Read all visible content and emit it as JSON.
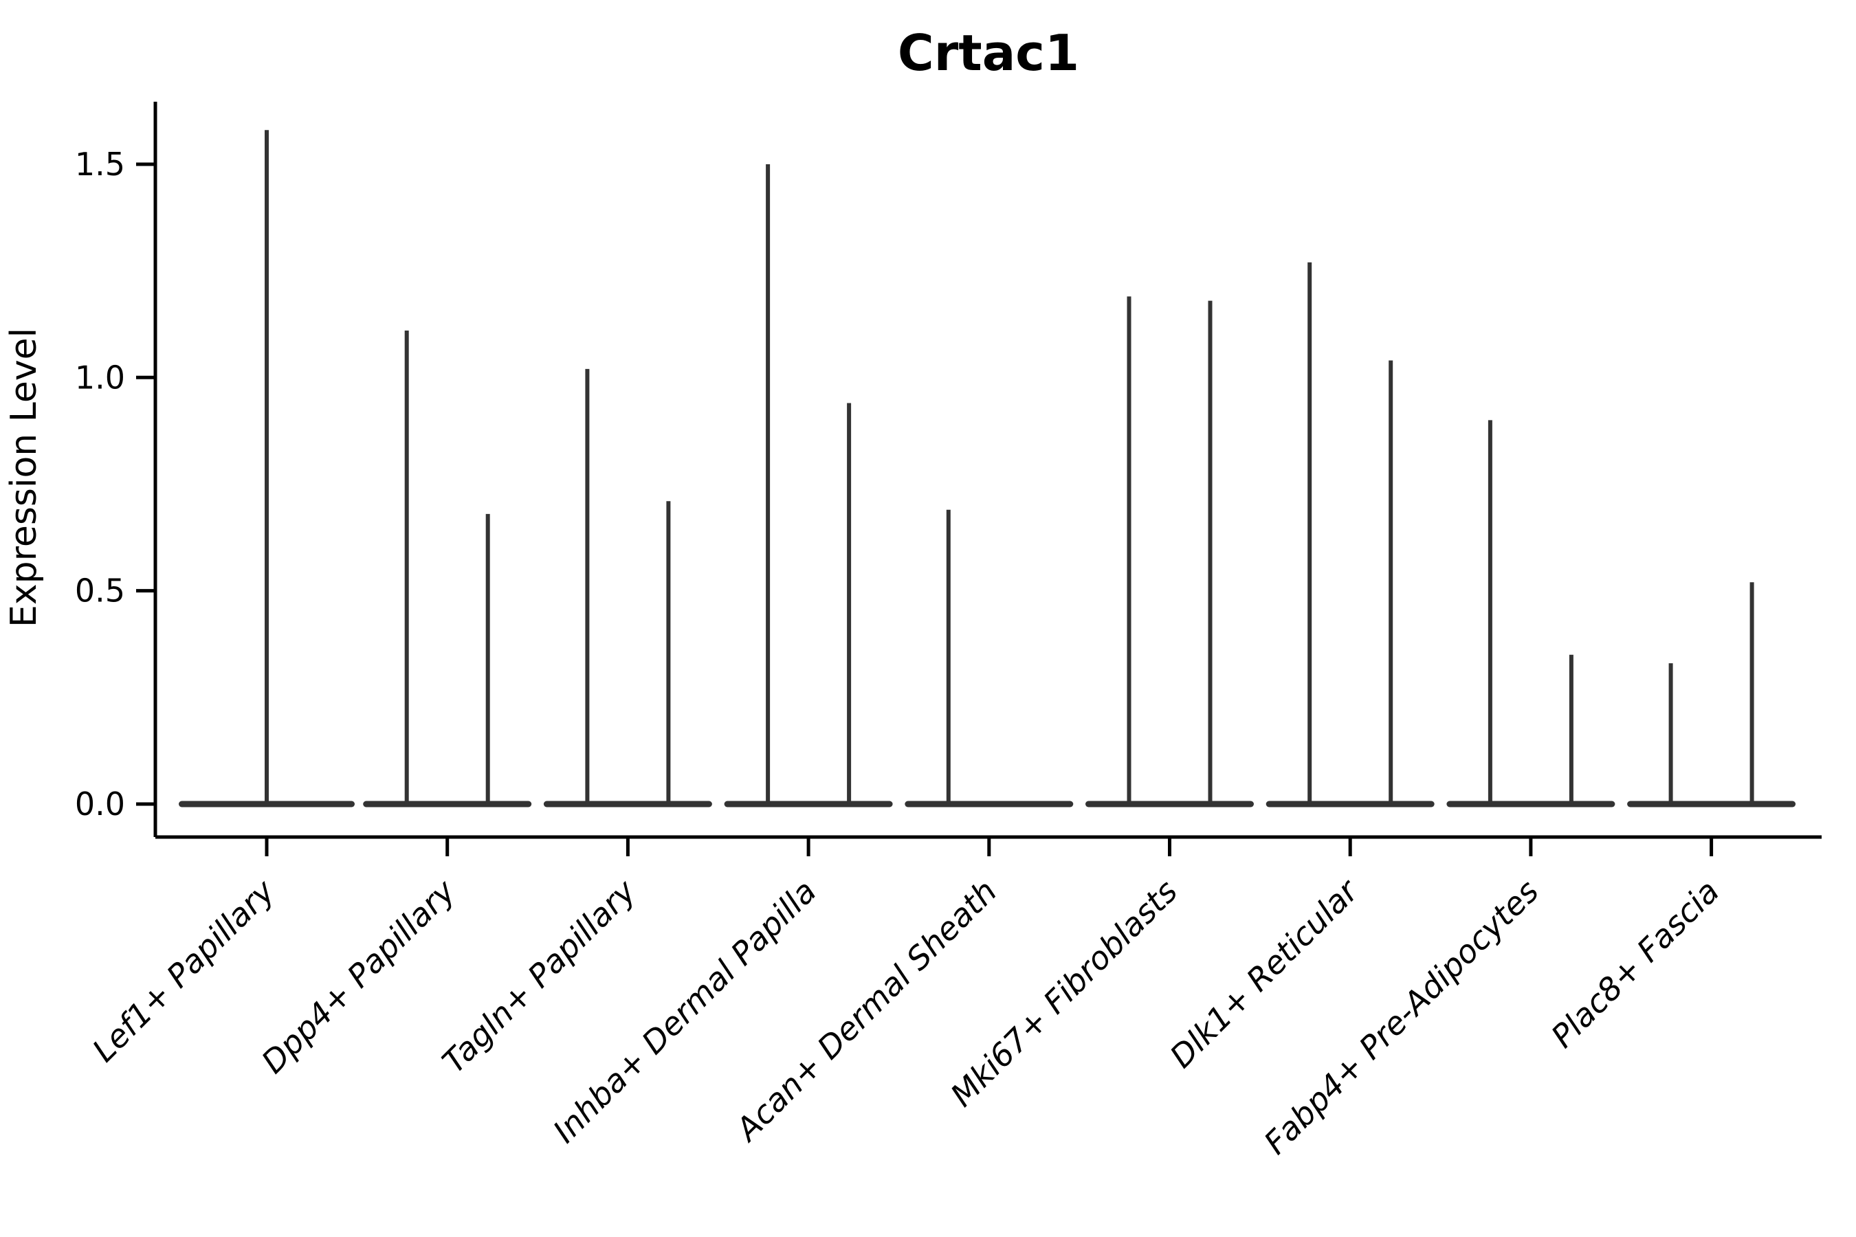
{
  "figure": {
    "title": "Crtac1",
    "ylabel": "Expression Level"
  },
  "chart_data": {
    "type": "violin",
    "title": "Crtac1",
    "xlabel": "",
    "ylabel": "Expression Level",
    "ylim": [
      0,
      1.65
    ],
    "grid": false,
    "legend": "none",
    "violin_color": "#333333",
    "axis_color": "#000000",
    "yticks": [
      {
        "label": "0.0",
        "value": 0.0
      },
      {
        "label": "0.5",
        "value": 0.5
      },
      {
        "label": "1.0",
        "value": 1.0
      },
      {
        "label": "1.5",
        "value": 1.5
      }
    ],
    "description": "Needle-thin violin plot of Crtac1 expression per fibroblast cluster; most cells at 0 (wide flat base), thin spike rises to the maximum expression. Some clusters contain two side-by-side (split) violins.",
    "categories": [
      {
        "label": "Lef1+ Papillary",
        "violins": [
          {
            "side": "center",
            "max": 1.58
          }
        ]
      },
      {
        "label": "Dpp4+ Papillary",
        "violins": [
          {
            "side": "left",
            "max": 1.11
          },
          {
            "side": "right",
            "max": 0.68
          }
        ]
      },
      {
        "label": "Tagln+ Papillary",
        "violins": [
          {
            "side": "left",
            "max": 1.02
          },
          {
            "side": "right",
            "max": 0.71
          }
        ]
      },
      {
        "label": "Inhba+ Dermal Papilla",
        "violins": [
          {
            "side": "left",
            "max": 1.5
          },
          {
            "side": "right",
            "max": 0.94
          }
        ]
      },
      {
        "label": "Acan+ Dermal Sheath",
        "violins": [
          {
            "side": "left",
            "max": 0.69
          },
          {
            "side": "right",
            "max": 0.0
          }
        ]
      },
      {
        "label": "Mki67+ Fibroblasts",
        "violins": [
          {
            "side": "left",
            "max": 1.19
          },
          {
            "side": "right",
            "max": 1.18
          }
        ]
      },
      {
        "label": "Dlk1+ Reticular",
        "violins": [
          {
            "side": "left",
            "max": 1.27
          },
          {
            "side": "right",
            "max": 1.04
          }
        ]
      },
      {
        "label": "Fabp4+ Pre-Adipocytes",
        "violins": [
          {
            "side": "left",
            "max": 0.9
          },
          {
            "side": "right",
            "max": 0.35
          }
        ]
      },
      {
        "label": "Plac8+ Fascia",
        "violins": [
          {
            "side": "left",
            "max": 0.33
          },
          {
            "side": "right",
            "max": 0.52
          }
        ]
      }
    ]
  }
}
